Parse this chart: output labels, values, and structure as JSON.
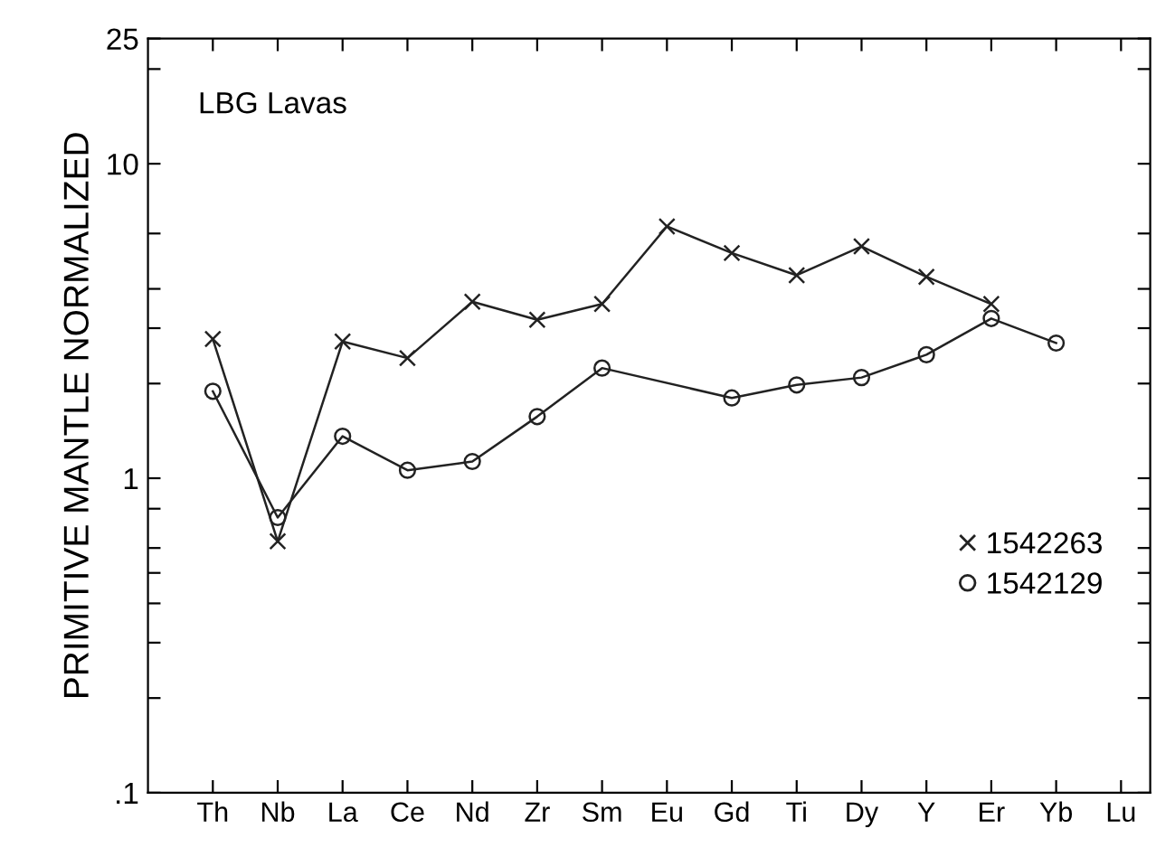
{
  "chart_data": {
    "type": "line",
    "ylabel": "PRIMITIVE MANTLE NORMALIZED",
    "annotations": [
      "LBG Lavas"
    ],
    "categories": [
      "Th",
      "Nb",
      "La",
      "Ce",
      "Nd",
      "Zr",
      "Sm",
      "Eu",
      "Gd",
      "Ti",
      "Dy",
      "Y",
      "Er",
      "Yb",
      "Lu"
    ],
    "series": [
      {
        "name": "1542263",
        "color": "#222222",
        "marker": "cross",
        "values": [
          2.77,
          0.63,
          2.72,
          2.41,
          3.64,
          3.19,
          3.58,
          6.32,
          5.2,
          4.42,
          5.46,
          4.37,
          3.58,
          null,
          null
        ]
      },
      {
        "name": "1542129",
        "color": "#222222",
        "marker": "circle",
        "values": [
          1.89,
          0.75,
          1.36,
          1.06,
          1.13,
          1.57,
          2.24,
          null,
          1.8,
          1.98,
          2.09,
          2.47,
          3.22,
          2.69,
          null
        ]
      }
    ],
    "log": "y",
    "ylim": [
      0.1,
      25
    ],
    "yticks": [
      {
        "value": 0.1,
        "label": ".1"
      },
      {
        "value": 0.2,
        "label": null
      },
      {
        "value": 0.3,
        "label": null
      },
      {
        "value": 0.4,
        "label": null
      },
      {
        "value": 0.5,
        "label": null
      },
      {
        "value": 0.6,
        "label": null
      },
      {
        "value": 0.8,
        "label": null
      },
      1,
      {
        "value": 2,
        "label": null
      },
      {
        "value": 3,
        "label": null
      },
      {
        "value": 4,
        "label": null
      },
      {
        "value": 6,
        "label": null
      },
      10,
      {
        "value": 20,
        "label": null
      },
      25
    ],
    "legend": "bottom right",
    "grid": false,
    "line_style": "solid"
  }
}
